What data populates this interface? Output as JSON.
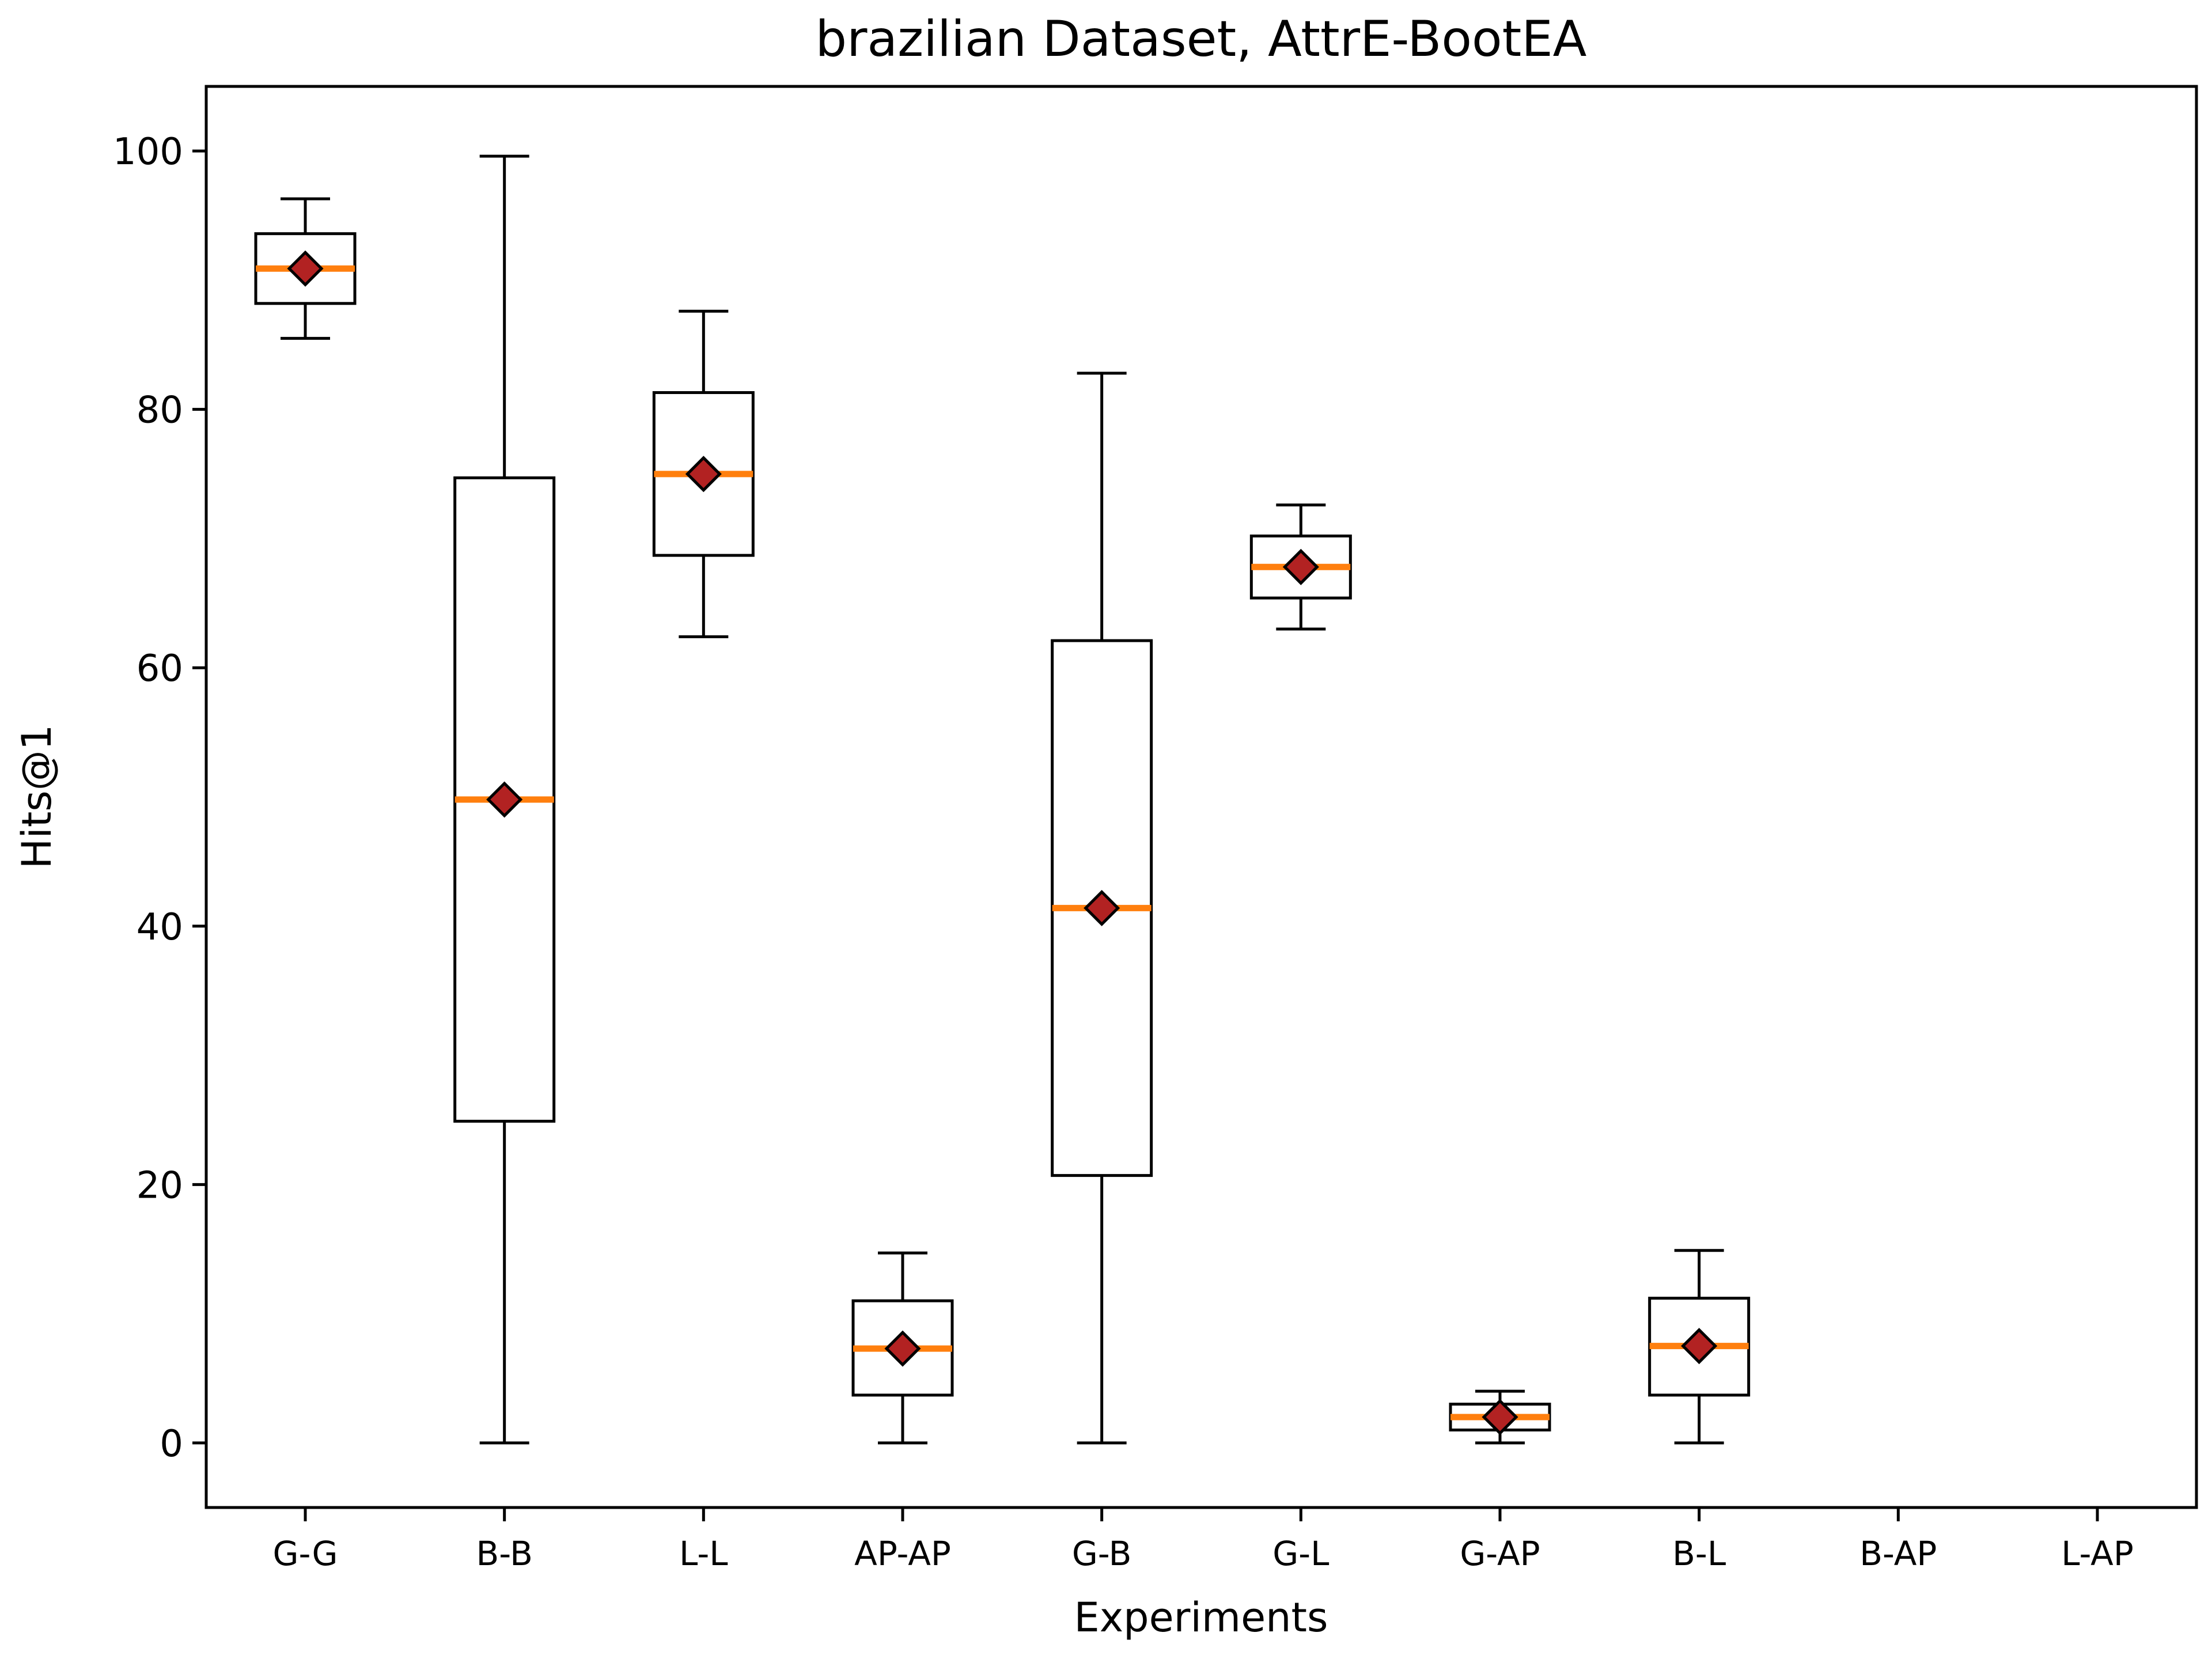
{
  "chart_data": {
    "type": "box",
    "title": "brazilian Dataset, AttrE-BootEA",
    "xlabel": "Experiments",
    "ylabel": "Hits@1",
    "ylim": [
      -5,
      105
    ],
    "yticks": [
      0,
      20,
      40,
      60,
      80,
      100
    ],
    "grid": false,
    "categories": [
      "G-G",
      "B-B",
      "L-L",
      "AP-AP",
      "G-B",
      "G-L",
      "G-AP",
      "B-L",
      "B-AP",
      "L-AP"
    ],
    "boxes": [
      {
        "category": "G-G",
        "whisker_low": 85.5,
        "q1": 88.2,
        "median": 90.9,
        "q3": 93.6,
        "whisker_high": 96.3,
        "mean": 90.9
      },
      {
        "category": "B-B",
        "whisker_low": 0.0,
        "q1": 24.9,
        "median": 49.8,
        "q3": 74.7,
        "whisker_high": 99.6,
        "mean": 49.8
      },
      {
        "category": "L-L",
        "whisker_low": 62.4,
        "q1": 68.7,
        "median": 75.0,
        "q3": 81.3,
        "whisker_high": 87.6,
        "mean": 75.0
      },
      {
        "category": "AP-AP",
        "whisker_low": 0.0,
        "q1": 3.7,
        "median": 7.3,
        "q3": 11.0,
        "whisker_high": 14.7,
        "mean": 7.3
      },
      {
        "category": "G-B",
        "whisker_low": 0.0,
        "q1": 20.7,
        "median": 41.4,
        "q3": 62.1,
        "whisker_high": 82.8,
        "mean": 41.4
      },
      {
        "category": "G-L",
        "whisker_low": 63.0,
        "q1": 65.4,
        "median": 67.8,
        "q3": 70.2,
        "whisker_high": 72.6,
        "mean": 67.8
      },
      {
        "category": "G-AP",
        "whisker_low": 0.0,
        "q1": 1.0,
        "median": 2.0,
        "q3": 3.0,
        "whisker_high": 4.0,
        "mean": 2.0
      },
      {
        "category": "B-L",
        "whisker_low": 0.0,
        "q1": 3.7,
        "median": 7.5,
        "q3": 11.2,
        "whisker_high": 14.9,
        "mean": 7.5
      },
      {
        "category": "B-AP"
      },
      {
        "category": "L-AP"
      }
    ],
    "colors": {
      "box": "#000000",
      "median": "#ff7f0e",
      "mean_marker": "#b22222"
    }
  }
}
